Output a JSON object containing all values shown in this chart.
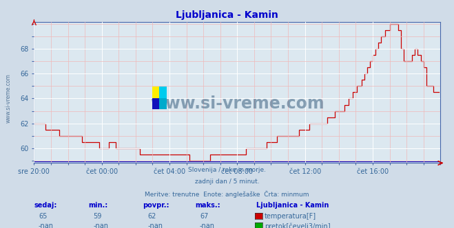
{
  "title": "Ljubljanica - Kamin",
  "bg_color": "#d0dce8",
  "plot_bg_color": "#dce8f0",
  "line_color": "#cc0000",
  "blue_line_color": "#0000bb",
  "grid_color_major": "#ffffff",
  "grid_color_minor": "#f0b8b8",
  "axis_color": "#4466aa",
  "text_color": "#336699",
  "title_color": "#0000cc",
  "ylim_min": 59.0,
  "ylim_max": 70.2,
  "yticks": [
    60,
    62,
    64,
    66,
    68
  ],
  "subtitle_lines": [
    "Slovenija / reke in morje.",
    "zadnji dan / 5 minut.",
    "Meritve: trenutne  Enote: anglešaške  Črta: minmum"
  ],
  "table_headers": [
    "sedaj:",
    "min.:",
    "povpr.:",
    "maks.:"
  ],
  "table_row1": [
    "65",
    "59",
    "62",
    "67"
  ],
  "table_row2": [
    "-nan",
    "-nan",
    "-nan",
    "-nan"
  ],
  "legend_title": "Ljubljanica - Kamin",
  "legend_items": [
    {
      "label": "temperatura[F]",
      "color": "#cc0000"
    },
    {
      "label": "pretok[čevelj3/min]",
      "color": "#00aa00"
    }
  ],
  "watermark": "www.si-vreme.com",
  "watermark_color": "#3a6080",
  "side_label": "www.si-vreme.com",
  "xtick_labels": [
    "sre 20:00",
    "čet 00:00",
    "čet 04:00",
    "čet 08:00",
    "čet 12:00",
    "čet 16:00"
  ]
}
